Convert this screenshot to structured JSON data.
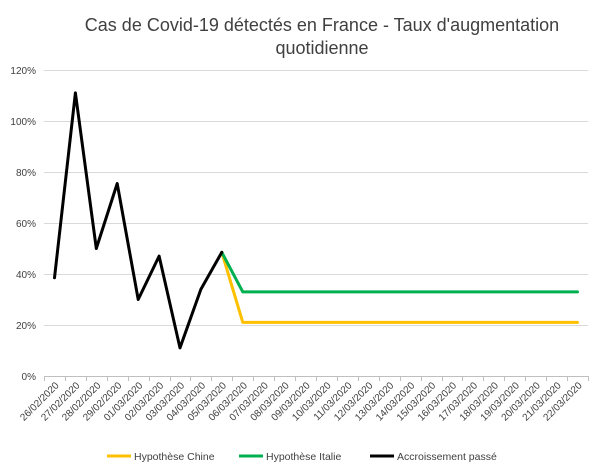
{
  "chart_data": {
    "type": "line",
    "title_lines": [
      "Cas de Covid-19 détectés en France - Taux d'augmentation",
      "quotidienne"
    ],
    "xlabel": "",
    "ylabel": "",
    "categories": [
      "26/02/2020",
      "27/02/2020",
      "28/02/2020",
      "29/02/2020",
      "01/03/2020",
      "02/03/2020",
      "03/03/2020",
      "04/03/2020",
      "05/03/2020",
      "06/03/2020",
      "07/03/2020",
      "08/03/2020",
      "09/03/2020",
      "10/03/2020",
      "11/03/2020",
      "12/03/2020",
      "13/03/2020",
      "14/03/2020",
      "15/03/2020",
      "16/03/2020",
      "17/03/2020",
      "18/03/2020",
      "19/03/2020",
      "20/03/2020",
      "21/03/2020",
      "22/03/2020"
    ],
    "ylim": [
      0,
      120
    ],
    "yticks": [
      0,
      20,
      40,
      60,
      80,
      100,
      120
    ],
    "ytick_labels": [
      "0%",
      "20%",
      "40%",
      "60%",
      "80%",
      "100%",
      "120%"
    ],
    "grid": true,
    "legend_position": "bottom",
    "series": [
      {
        "name": "Hypothèse Chine",
        "color": "#ffc000",
        "values": [
          null,
          null,
          null,
          null,
          null,
          null,
          null,
          null,
          48.5,
          21,
          21,
          21,
          21,
          21,
          21,
          21,
          21,
          21,
          21,
          21,
          21,
          21,
          21,
          21,
          21,
          21
        ]
      },
      {
        "name": "Hypothèse Italie",
        "color": "#00b050",
        "values": [
          null,
          null,
          null,
          null,
          null,
          null,
          null,
          null,
          48.5,
          33,
          33,
          33,
          33,
          33,
          33,
          33,
          33,
          33,
          33,
          33,
          33,
          33,
          33,
          33,
          33,
          33
        ]
      },
      {
        "name": "Accroissement passé",
        "color": "#000000",
        "values": [
          38.5,
          111,
          50,
          75.5,
          30,
          47,
          11,
          34,
          48.5,
          null,
          null,
          null,
          null,
          null,
          null,
          null,
          null,
          null,
          null,
          null,
          null,
          null,
          null,
          null,
          null,
          null
        ]
      }
    ]
  }
}
